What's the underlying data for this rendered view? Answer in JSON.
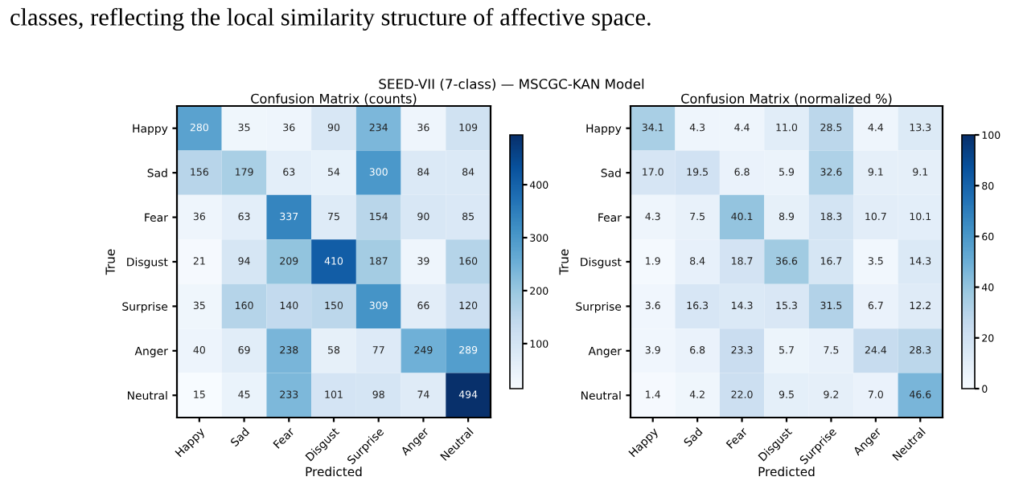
{
  "chart_data": [
    {
      "type": "heatmap",
      "title": "Confusion Matrix (counts)",
      "xlabel": "Predicted",
      "ylabel": "True",
      "annotations": [
        "classes, reflecting the local similarity structure of affective space.",
        "SEED-VII (7-class) — MSCGC-KAN Model"
      ],
      "categories": [
        "Happy",
        "Sad",
        "Fear",
        "Disgust",
        "Surprise",
        "Anger",
        "Neutral"
      ],
      "y_categories": [
        "Happy",
        "Sad",
        "Fear",
        "Disgust",
        "Surprise",
        "Anger",
        "Neutral"
      ],
      "cells": [
        [
          280,
          35,
          36,
          90,
          234,
          36,
          109
        ],
        [
          156,
          179,
          63,
          54,
          300,
          84,
          84
        ],
        [
          36,
          63,
          337,
          75,
          154,
          90,
          85
        ],
        [
          21,
          94,
          209,
          410,
          187,
          39,
          160
        ],
        [
          35,
          160,
          140,
          150,
          309,
          66,
          120
        ],
        [
          40,
          69,
          238,
          58,
          77,
          249,
          289
        ],
        [
          15,
          45,
          233,
          101,
          98,
          74,
          494
        ]
      ],
      "clim": [
        15,
        494
      ],
      "cticks": [
        100,
        200,
        300,
        400
      ],
      "data_labels": true
    },
    {
      "type": "heatmap",
      "title": "Confusion Matrix (normalized %)",
      "xlabel": "Predicted",
      "ylabel": "True",
      "categories": [
        "Happy",
        "Sad",
        "Fear",
        "Disgust",
        "Surprise",
        "Anger",
        "Neutral"
      ],
      "y_categories": [
        "Happy",
        "Sad",
        "Fear",
        "Disgust",
        "Surprise",
        "Anger",
        "Neutral"
      ],
      "cells": [
        [
          34.1,
          4.3,
          4.4,
          11.0,
          28.5,
          4.4,
          13.3
        ],
        [
          17.0,
          19.5,
          6.8,
          5.9,
          32.6,
          9.1,
          9.1
        ],
        [
          4.3,
          7.5,
          40.1,
          8.9,
          18.3,
          10.7,
          10.1
        ],
        [
          1.9,
          8.4,
          18.7,
          36.6,
          16.7,
          3.5,
          14.3
        ],
        [
          3.6,
          16.3,
          14.3,
          15.3,
          31.5,
          6.7,
          12.2
        ],
        [
          3.9,
          6.8,
          23.3,
          5.7,
          7.5,
          24.4,
          28.3
        ],
        [
          1.4,
          4.2,
          22.0,
          9.5,
          9.2,
          7.0,
          46.6
        ]
      ],
      "clim": [
        0,
        100
      ],
      "cticks": [
        0,
        20,
        40,
        60,
        80,
        100
      ],
      "cell_labels": [
        [
          "34.1",
          "4.3",
          "4.4",
          "11.0",
          "28.5",
          "4.4",
          "13.3"
        ],
        [
          "17.0",
          "19.5",
          "6.8",
          "5.9",
          "32.6",
          "9.1",
          "9.1"
        ],
        [
          "4.3",
          "7.5",
          "40.1",
          "8.9",
          "18.3",
          "10.7",
          "10.1"
        ],
        [
          "1.9",
          "8.4",
          "18.7",
          "36.6",
          "16.7",
          "3.5",
          "14.3"
        ],
        [
          "3.6",
          "16.3",
          "14.3",
          "15.3",
          "31.5",
          "6.7",
          "12.2"
        ],
        [
          "3.9",
          "6.8",
          "23.3",
          "5.7",
          "7.5",
          "24.4",
          "28.3"
        ],
        [
          "1.4",
          "4.2",
          "22.0",
          "9.5",
          "9.2",
          "7.0",
          "46.6"
        ]
      ]
    }
  ]
}
